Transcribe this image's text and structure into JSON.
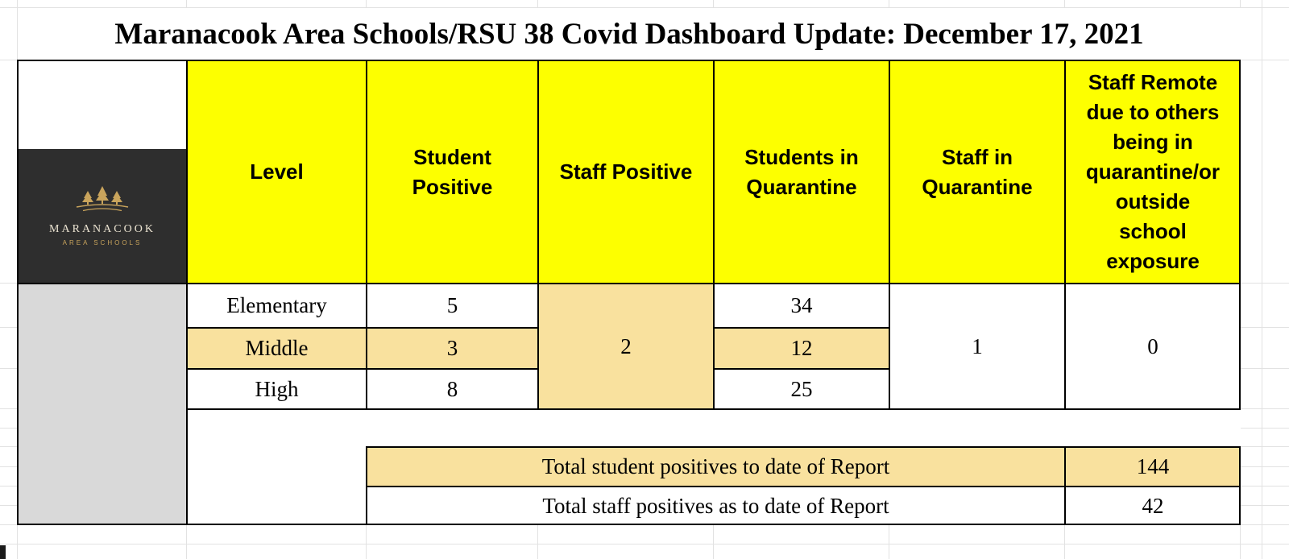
{
  "title": "Maranacook Area Schools/RSU 38 Covid Dashboard Update: December 17, 2021",
  "logo": {
    "line1": "MARANACOOK",
    "line2": "AREA SCHOOLS",
    "icon": "pine-trees-icon"
  },
  "columns": {
    "level": "Level",
    "student_positive": "Student\nPositive",
    "staff_positive": "Staff Positive",
    "students_in_quarantine": "Students in\nQuarantine",
    "staff_in_quarantine": "Staff in\nQuarantine",
    "staff_remote": "Staff Remote\ndue to others\nbeing in\nquarantine/or\noutside\nschool\nexposure"
  },
  "rows": [
    {
      "level": "Elementary",
      "student_positive": "5",
      "students_in_quarantine": "34"
    },
    {
      "level": "Middle",
      "student_positive": "3",
      "students_in_quarantine": "12"
    },
    {
      "level": "High",
      "student_positive": "8",
      "students_in_quarantine": "25"
    }
  ],
  "merged": {
    "staff_positive": "2",
    "staff_in_quarantine": "1",
    "staff_remote": "0"
  },
  "totals": [
    {
      "label": "Total student positives to date of Report",
      "value": "144"
    },
    {
      "label": "Total staff positives as to date of Report",
      "value": "42"
    }
  ],
  "colors": {
    "header_yellow": "#fdff00",
    "highlight_tan": "#f9e19e",
    "left_block_gray": "#d9d9d9",
    "logo_background": "#2e2e2e",
    "logo_gold": "#c9a45c",
    "gridline": "#e2e2e2",
    "border_black": "#000000"
  }
}
